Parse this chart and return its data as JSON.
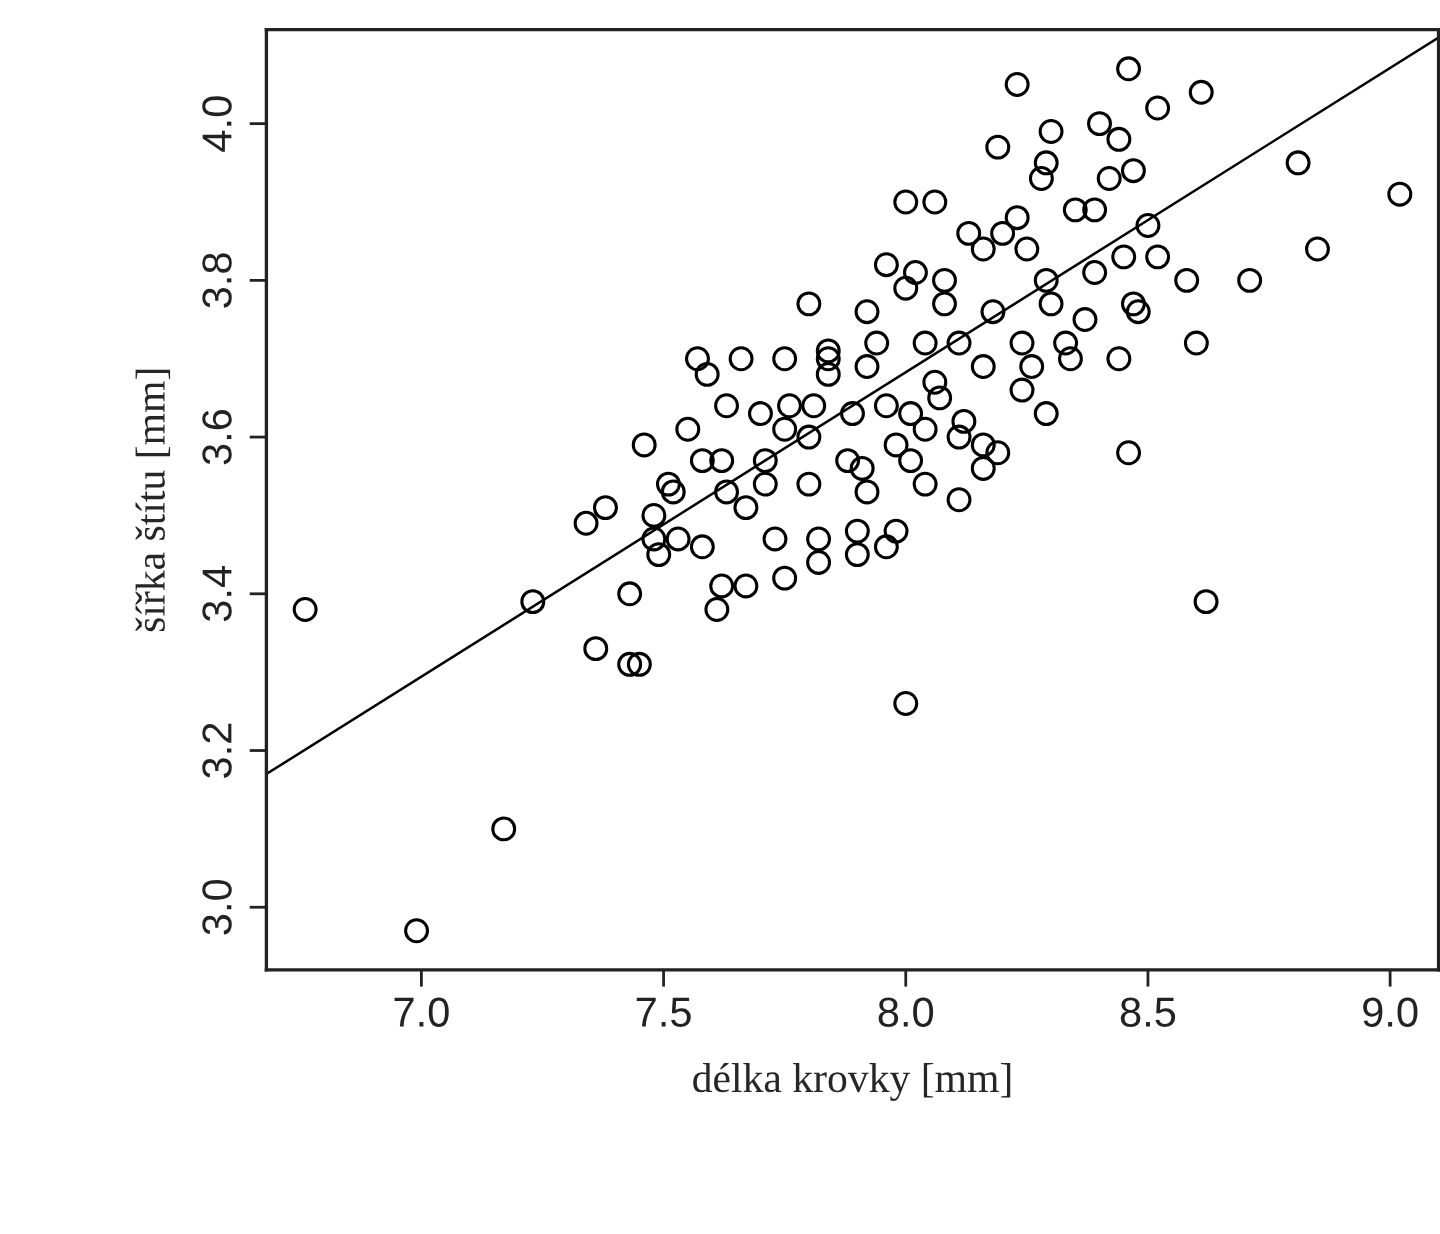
{
  "chart_data": {
    "type": "scatter",
    "xlabel": "délka krovky [mm]",
    "ylabel": "šířka štítu [mm]",
    "xlim": [
      6.68,
      9.1
    ],
    "ylim": [
      2.92,
      4.12
    ],
    "xticks": [
      {
        "value": 7,
        "label": "7.0"
      },
      {
        "value": 7.5,
        "label": "7.5"
      },
      {
        "value": 8,
        "label": "8.0"
      },
      {
        "value": 8.5,
        "label": "8.5"
      },
      {
        "value": 9,
        "label": "9.0"
      }
    ],
    "yticks": [
      {
        "value": 3,
        "label": "3.0"
      },
      {
        "value": 3.2,
        "label": "3.2"
      },
      {
        "value": 3.4,
        "label": "3.4"
      },
      {
        "value": 3.6,
        "label": "3.6"
      },
      {
        "value": 3.8,
        "label": "3.8"
      },
      {
        "value": 4,
        "label": "4.0"
      }
    ],
    "grid": false,
    "legend": false,
    "series": [
      {
        "marker": "circle",
        "color": "#000000",
        "x": [
          6.76,
          6.99,
          7.17,
          7.23,
          7.36,
          7.34,
          7.38,
          7.43,
          7.43,
          7.45,
          7.46,
          7.48,
          7.48,
          7.49,
          7.51,
          7.52,
          7.53,
          7.55,
          7.57,
          7.58,
          7.58,
          7.59,
          7.61,
          7.62,
          7.62,
          7.63,
          7.63,
          7.66,
          7.67,
          7.67,
          7.7,
          7.71,
          7.71,
          7.73,
          7.75,
          7.75,
          7.75,
          7.76,
          7.8,
          7.8,
          7.8,
          7.82,
          7.82,
          7.84,
          7.81,
          7.84,
          7.84,
          7.88,
          7.89,
          7.9,
          7.9,
          7.91,
          7.92,
          7.92,
          7.92,
          7.94,
          7.96,
          7.96,
          7.96,
          7.98,
          7.98,
          8.0,
          8.0,
          8.0,
          8.01,
          8.01,
          8.02,
          8.04,
          8.04,
          8.04,
          8.06,
          8.06,
          8.07,
          8.08,
          8.08,
          8.11,
          8.11,
          8.11,
          8.12,
          8.13,
          8.16,
          8.16,
          8.16,
          8.16,
          8.18,
          8.19,
          8.19,
          8.2,
          8.23,
          8.23,
          8.24,
          8.24,
          8.25,
          8.26,
          8.28,
          8.29,
          8.29,
          8.29,
          8.3,
          8.3,
          8.33,
          8.34,
          8.35,
          8.37,
          8.39,
          8.39,
          8.4,
          8.42,
          8.44,
          8.44,
          8.45,
          8.46,
          8.46,
          8.47,
          8.47,
          8.48,
          8.5,
          8.52,
          8.52,
          8.58,
          8.6,
          8.61,
          8.62,
          8.71,
          8.81,
          8.85,
          9.02
        ],
        "values": [
          3.38,
          2.97,
          3.1,
          3.39,
          3.33,
          3.49,
          3.51,
          3.4,
          3.31,
          3.31,
          3.59,
          3.5,
          3.47,
          3.45,
          3.54,
          3.53,
          3.47,
          3.61,
          3.7,
          3.57,
          3.46,
          3.68,
          3.38,
          3.57,
          3.41,
          3.53,
          3.64,
          3.7,
          3.51,
          3.41,
          3.63,
          3.57,
          3.54,
          3.47,
          3.7,
          3.42,
          3.61,
          3.64,
          3.6,
          3.54,
          3.77,
          3.47,
          3.44,
          3.7,
          3.64,
          3.71,
          3.68,
          3.57,
          3.63,
          3.48,
          3.45,
          3.56,
          3.76,
          3.69,
          3.53,
          3.72,
          3.82,
          3.46,
          3.64,
          3.59,
          3.48,
          3.9,
          3.79,
          3.26,
          3.63,
          3.57,
          3.81,
          3.72,
          3.54,
          3.61,
          3.9,
          3.67,
          3.65,
          3.8,
          3.77,
          3.72,
          3.6,
          3.52,
          3.62,
          3.86,
          3.84,
          3.69,
          3.59,
          3.56,
          3.76,
          3.58,
          3.97,
          3.86,
          3.88,
          4.05,
          3.72,
          3.66,
          3.84,
          3.69,
          3.93,
          3.95,
          3.8,
          3.63,
          3.77,
          3.99,
          3.72,
          3.7,
          3.89,
          3.75,
          3.89,
          3.81,
          4.0,
          3.93,
          3.98,
          3.7,
          3.83,
          3.58,
          4.07,
          3.77,
          3.94,
          3.76,
          3.87,
          3.83,
          4.02,
          3.8,
          3.72,
          4.04,
          3.39,
          3.8,
          3.95,
          3.84,
          3.91
        ]
      },
      {
        "type": "line",
        "marker": "none",
        "line_style": "solid",
        "color": "#000000",
        "x": [
          6.68,
          9.1
        ],
        "values": [
          3.17,
          4.11
        ]
      }
    ]
  }
}
